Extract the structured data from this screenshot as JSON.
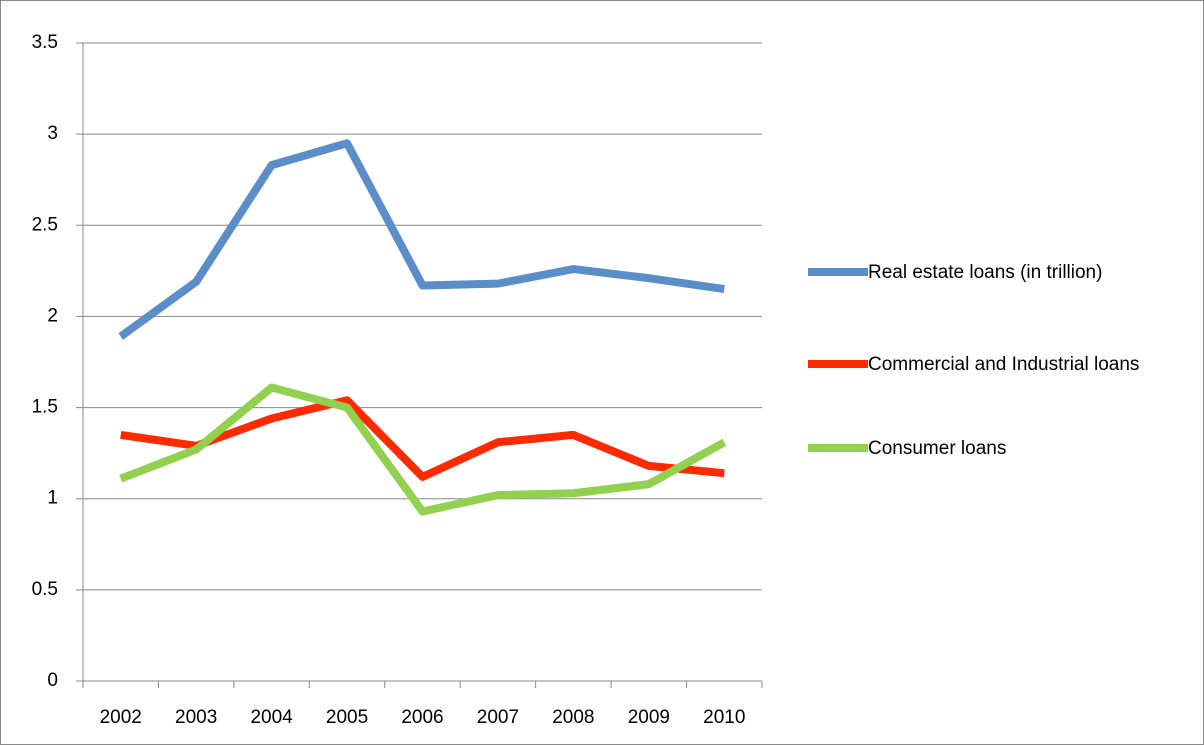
{
  "chart_data": {
    "type": "line",
    "categories": [
      "2002",
      "2003",
      "2004",
      "2005",
      "2006",
      "2007",
      "2008",
      "2009",
      "2010"
    ],
    "series": [
      {
        "name": "Real estate loans (in trillion)",
        "color": "#5b8ec9",
        "values": [
          1.89,
          2.19,
          2.83,
          2.95,
          2.17,
          2.18,
          2.26,
          2.21,
          2.15
        ]
      },
      {
        "name": "Commercial and Industrial loans",
        "color": "#ff2a00",
        "values": [
          1.35,
          1.29,
          1.44,
          1.54,
          1.12,
          1.31,
          1.35,
          1.18,
          1.14
        ]
      },
      {
        "name": "Consumer loans",
        "color": "#92d050",
        "values": [
          1.11,
          1.27,
          1.61,
          1.5,
          0.93,
          1.02,
          1.03,
          1.08,
          1.31
        ]
      }
    ],
    "ylim": [
      0,
      3.5
    ],
    "yticks": [
      0,
      0.5,
      1,
      1.5,
      2,
      2.5,
      3,
      3.5
    ],
    "grid": true,
    "legend": "right"
  }
}
